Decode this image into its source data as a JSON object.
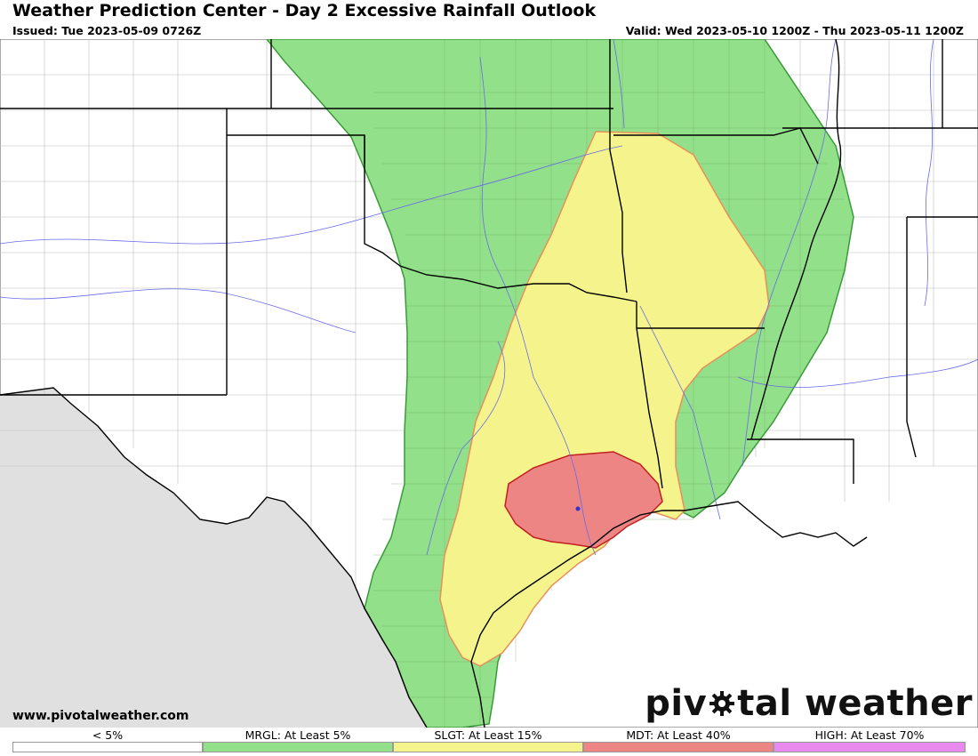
{
  "header": {
    "title": "Weather Prediction Center - Day 2 Excessive Rainfall Outlook",
    "issued": "Issued: Tue 2023-05-09 0726Z",
    "valid": "Valid: Wed 2023-05-10 1200Z - Thu 2023-05-11 1200Z"
  },
  "footer": {
    "website": "www.pivotalweather.com",
    "brand_prefix": "piv",
    "brand_suffix": "tal weather"
  },
  "legend": [
    {
      "label": "< 5%",
      "color": "#ffffff"
    },
    {
      "label": "MRGL: At Least 5%",
      "color": "#92e089"
    },
    {
      "label": "SLGT: At Least 15%",
      "color": "#f5f38c"
    },
    {
      "label": "MDT: At Least 40%",
      "color": "#ee8585"
    },
    {
      "label": "HIGH: At Least 70%",
      "color": "#e889ee"
    }
  ],
  "map": {
    "risk_areas": [
      {
        "category": "MRGL",
        "fill": "#92e089",
        "stroke": "#3a9a3a"
      },
      {
        "category": "SLGT",
        "fill": "#f5f38c",
        "stroke": "#e8905a"
      },
      {
        "category": "MDT",
        "fill": "#ee8585",
        "stroke": "#c21f1f"
      }
    ],
    "no_data_color": "#e0e0e0"
  }
}
